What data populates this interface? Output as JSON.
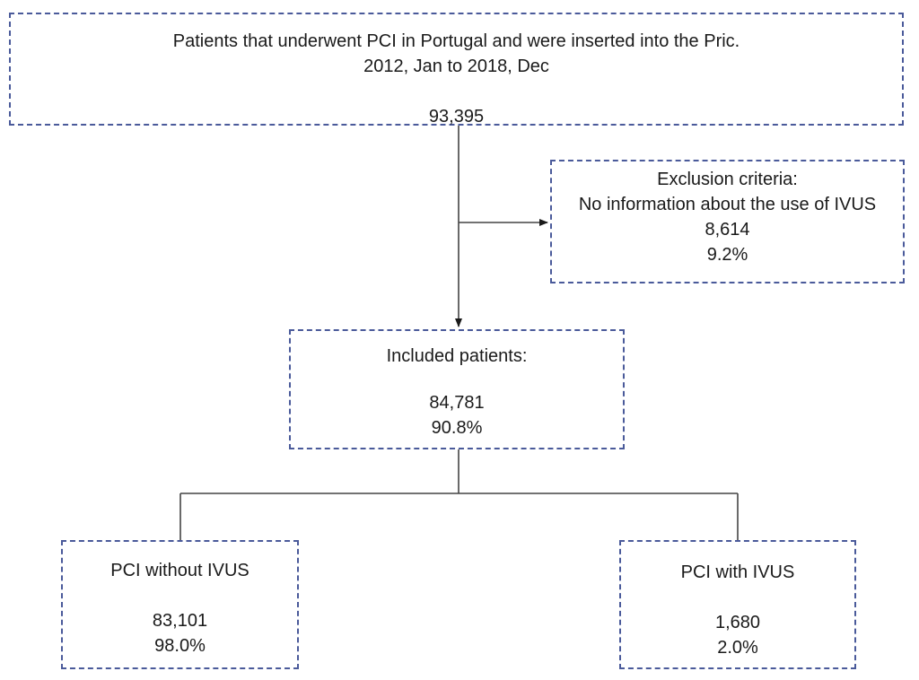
{
  "flowchart": {
    "source": {
      "title_line1": "Patients that underwent PCI in Portugal and were inserted into the Pric.",
      "title_line2": "2012, Jan to 2018, Dec",
      "count": "93,395"
    },
    "exclusion": {
      "heading": "Exclusion criteria:",
      "reason": "No information about the use of IVUS",
      "count": "8,614",
      "percent": "9.2%"
    },
    "included": {
      "heading": "Included patients:",
      "count": "84,781",
      "percent": "90.8%"
    },
    "without_ivus": {
      "heading": "PCI without IVUS",
      "count": "83,101",
      "percent": "98.0%"
    },
    "with_ivus": {
      "heading": "PCI with IVUS",
      "count": "1,680",
      "percent": "2.0%"
    }
  }
}
